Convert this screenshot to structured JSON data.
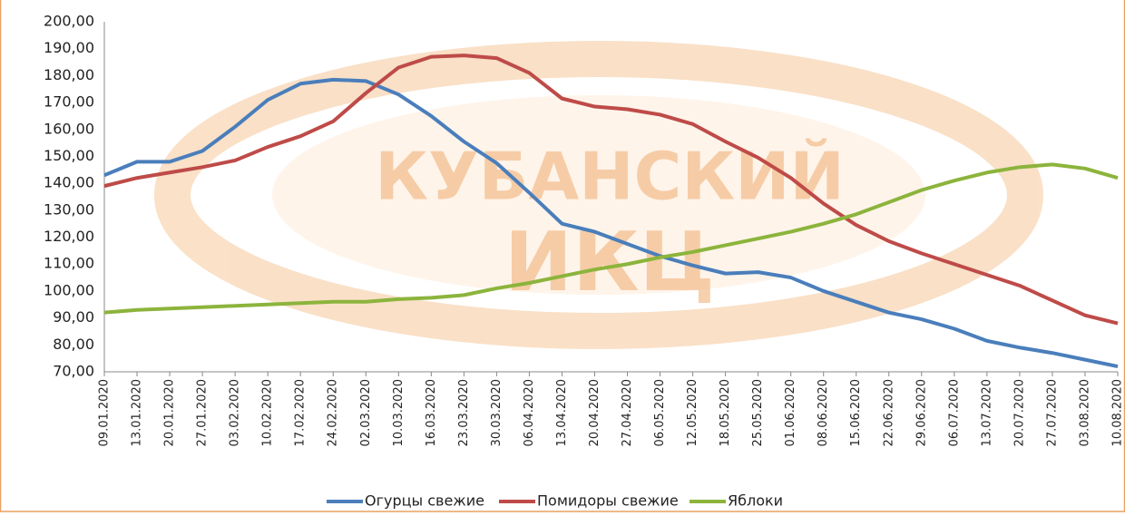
{
  "chart_data": {
    "type": "line",
    "watermark": [
      "КУБАНСКИЙ",
      "ИКЦ"
    ],
    "categories": [
      "09.01.2020",
      "13.01.2020",
      "20.01.2020",
      "27.01.2020",
      "03.02.2020",
      "10.02.2020",
      "17.02.2020",
      "24.02.2020",
      "02.03.2020",
      "10.03.2020",
      "16.03.2020",
      "23.03.2020",
      "30.03.2020",
      "06.04.2020",
      "13.04.2020",
      "20.04.2020",
      "27.04.2020",
      "06.05.2020",
      "12.05.2020",
      "18.05.2020",
      "25.05.2020",
      "01.06.2020",
      "08.06.2020",
      "15.06.2020",
      "22.06.2020",
      "29.06.2020",
      "06.07.2020",
      "13.07.2020",
      "20.07.2020",
      "27.07.2020",
      "03.08.2020",
      "10.08.2020"
    ],
    "series": [
      {
        "name": "Огурцы свежие",
        "color": "#4a7ebb",
        "values": [
          143,
          148,
          148,
          152,
          161,
          171,
          177,
          178.5,
          178,
          173,
          165,
          155.5,
          147.5,
          136.5,
          125,
          122,
          117.5,
          113,
          109.5,
          106.5,
          107,
          105,
          100,
          96,
          92,
          89.5,
          86,
          81.5,
          79,
          77,
          74.5,
          72
        ]
      },
      {
        "name": "Помидоры свежие",
        "color": "#be4b48",
        "values": [
          139,
          142,
          144,
          146,
          148.5,
          153.5,
          157.5,
          163,
          173.5,
          183,
          187,
          187.5,
          186.5,
          181,
          171.5,
          168.5,
          167.5,
          165.5,
          162,
          155.5,
          149.5,
          142,
          132.5,
          124.5,
          118.5,
          114,
          110,
          106,
          102,
          96.5,
          91,
          88
        ]
      },
      {
        "name": "Яблоки",
        "color": "#8cb43c",
        "values": [
          92,
          93,
          93.5,
          94,
          94.5,
          95,
          95.5,
          96,
          96,
          97,
          97.5,
          98.5,
          101,
          103,
          105.5,
          108,
          110,
          112.5,
          114.5,
          117,
          119.5,
          122,
          125,
          128.5,
          133,
          137.5,
          141,
          144,
          146,
          147,
          145.5,
          142
        ]
      }
    ],
    "ylim": [
      70,
      200
    ],
    "yticks": [
      {
        "value": 70,
        "label": "70,00"
      },
      {
        "value": 80,
        "label": "80,00"
      },
      {
        "value": 90,
        "label": "90,00"
      },
      {
        "value": 100,
        "label": "100,00"
      },
      {
        "value": 110,
        "label": "110,00"
      },
      {
        "value": 120,
        "label": "120,00"
      },
      {
        "value": 130,
        "label": "130,00"
      },
      {
        "value": 140,
        "label": "140,00"
      },
      {
        "value": 150,
        "label": "150,00"
      },
      {
        "value": 160,
        "label": "160,00"
      },
      {
        "value": 170,
        "label": "170,00"
      },
      {
        "value": 180,
        "label": "180,00"
      },
      {
        "value": 190,
        "label": "190,00"
      },
      {
        "value": 200,
        "label": "200,00"
      }
    ],
    "grid": false,
    "legend": "bottom"
  }
}
